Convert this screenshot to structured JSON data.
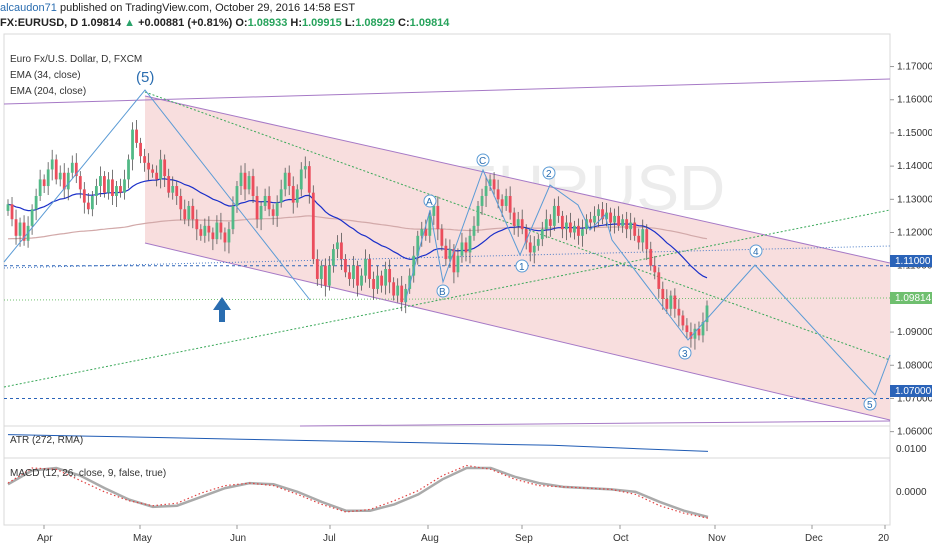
{
  "header": {
    "author": "alcaudon71",
    "published_text": "published on TradingView.com, October 29, 2016 14:58 EST",
    "symbol": "FX:EURUSD, D",
    "last": "1.09814",
    "change": "+0.00881 (+0.81%)",
    "o_label": "O:",
    "o": "1.08933",
    "h_label": "H:",
    "h": "1.09915",
    "l_label": "L:",
    "l": "1.08929",
    "c_label": "C:",
    "c": "1.09814"
  },
  "legend": {
    "title": "Euro Fx/U.S. Dollar, D, FXCM",
    "ema34": "EMA (34, close)",
    "ema204": "EMA (204, close)",
    "atr": "ATR (272, RMA)",
    "macd": "MACD (12, 26, close, 9, false, true)"
  },
  "colors": {
    "bull": "#53b987",
    "bear": "#eb4d5c",
    "ema34": "#1a2fc9",
    "ema204": "#c9a0a0",
    "channel": "#f3d3d3",
    "channel_line": "#a679c6",
    "wave": "#5b9bd5",
    "green_dot": "#3aa859",
    "hline": "#2a63b8",
    "price_tag": "#6fbf6f"
  },
  "chart_data": [
    {
      "type": "candlestick",
      "title": "Euro Fx/U.S. Dollar, D, FXCM",
      "x_ticks": [
        "Apr",
        "May",
        "Jun",
        "Jul",
        "Aug",
        "Sep",
        "Oct",
        "Nov",
        "Dec",
        "20"
      ],
      "y_ticks": [
        "1.17000",
        "1.16000",
        "1.15000",
        "1.14000",
        "1.13000",
        "1.12000",
        "1.11000",
        "1.10000",
        "1.09000",
        "1.08000",
        "1.07000",
        "1.06000"
      ],
      "ylim": [
        1.062,
        1.178
      ],
      "current_price": 1.09814,
      "horizontal_levels": [
        1.11,
        1.07
      ],
      "horizontal_level_labels": [
        "1.11000",
        "1.07000"
      ],
      "wave_labels": [
        "(5)",
        "A",
        "B",
        "C",
        "1",
        "2",
        "3",
        "4",
        "5"
      ],
      "closes": [
        1.1285,
        1.124,
        1.119,
        1.123,
        1.1175,
        1.122,
        1.127,
        1.131,
        1.136,
        1.134,
        1.139,
        1.142,
        1.136,
        1.138,
        1.133,
        1.138,
        1.141,
        1.137,
        1.133,
        1.129,
        1.127,
        1.131,
        1.134,
        1.137,
        1.132,
        1.136,
        1.131,
        1.134,
        1.132,
        1.136,
        1.142,
        1.151,
        1.147,
        1.143,
        1.141,
        1.139,
        1.138,
        1.136,
        1.142,
        1.137,
        1.132,
        1.134,
        1.131,
        1.127,
        1.124,
        1.128,
        1.124,
        1.121,
        1.119,
        1.122,
        1.12,
        1.118,
        1.123,
        1.12,
        1.117,
        1.121,
        1.128,
        1.134,
        1.138,
        1.133,
        1.137,
        1.131,
        1.124,
        1.128,
        1.131,
        1.127,
        1.125,
        1.129,
        1.133,
        1.138,
        1.134,
        1.129,
        1.133,
        1.139,
        1.14,
        1.132,
        1.112,
        1.106,
        1.11,
        1.104,
        1.11,
        1.115,
        1.117,
        1.112,
        1.108,
        1.106,
        1.11,
        1.104,
        1.107,
        1.112,
        1.106,
        1.103,
        1.107,
        1.104,
        1.109,
        1.105,
        1.101,
        1.104,
        1.099,
        1.103,
        1.107,
        1.113,
        1.119,
        1.121,
        1.119,
        1.125,
        1.128,
        1.121,
        1.116,
        1.112,
        1.115,
        1.108,
        1.113,
        1.117,
        1.114,
        1.119,
        1.122,
        1.128,
        1.131,
        1.134,
        1.136,
        1.133,
        1.13,
        1.128,
        1.131,
        1.126,
        1.122,
        1.124,
        1.121,
        1.117,
        1.114,
        1.116,
        1.118,
        1.121,
        1.124,
        1.122,
        1.128,
        1.125,
        1.121,
        1.123,
        1.12,
        1.122,
        1.119,
        1.121,
        1.124,
        1.123,
        1.125,
        1.127,
        1.124,
        1.126,
        1.123,
        1.125,
        1.122,
        1.124,
        1.121,
        1.123,
        1.119,
        1.117,
        1.121,
        1.115,
        1.11,
        1.108,
        1.103,
        1.1,
        1.097,
        1.101,
        1.097,
        1.095,
        1.092,
        1.09,
        1.088,
        1.091,
        1.089,
        1.093,
        1.098
      ]
    },
    {
      "type": "line",
      "title": "ATR (272, RMA)",
      "y_ticks": [
        "0.0100"
      ],
      "values": [
        0.0109,
        0.0108,
        0.0107,
        0.0106,
        0.0105,
        0.0104,
        0.0103,
        0.0102,
        0.01,
        0.0098
      ]
    },
    {
      "type": "line",
      "title": "MACD (12, 26, close, 9, false, true)",
      "y_ticks": [
        "0.0000"
      ],
      "series": [
        {
          "values": [
            0.0005,
            0.0017,
            0.0016,
            0.0007,
            -0.0002,
            -0.0009,
            -0.0013,
            -0.0011,
            -0.0003,
            0.0003,
            0.0005,
            0.0003,
            -0.0004,
            -0.0012,
            -0.0018,
            -0.0016,
            -0.0009,
            -0.0001,
            0.0011,
            0.0019,
            0.0016,
            0.0008,
            0.0003,
            0.0002,
            0.0001,
            0.0,
            -0.0004,
            -0.0013,
            -0.0019,
            -0.0023
          ]
        },
        {
          "values": [
            0.0004,
            0.0015,
            0.0017,
            0.0011,
            0.0001,
            -0.0008,
            -0.0014,
            -0.0013,
            -0.0006,
            0.0001,
            0.0005,
            0.0004,
            -0.0002,
            -0.001,
            -0.0017,
            -0.0017,
            -0.0012,
            -0.0004,
            0.0008,
            0.0017,
            0.0017,
            0.001,
            0.0005,
            0.0002,
            0.0001,
            0.0,
            -0.0002,
            -0.001,
            -0.0017,
            -0.0022
          ]
        }
      ]
    }
  ]
}
